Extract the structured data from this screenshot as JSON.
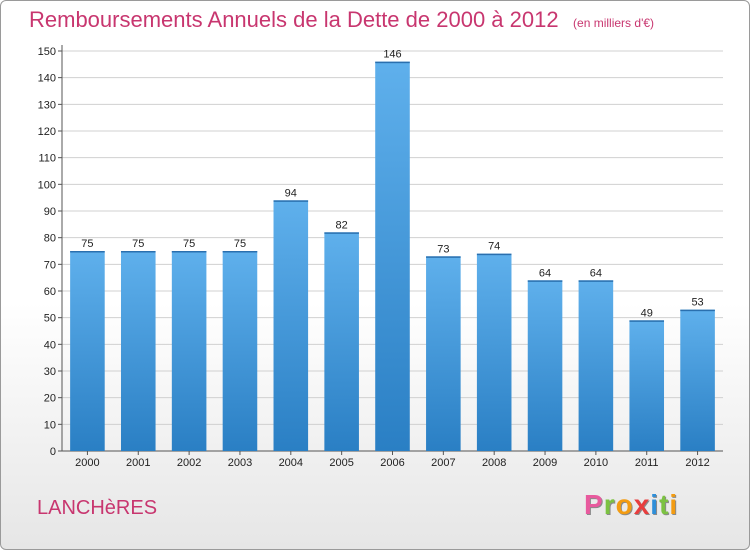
{
  "chart_data": {
    "type": "bar",
    "title": "Remboursements Annuels de la Dette de 2000 à 2012",
    "subtitle": "(en milliers d'€)",
    "categories": [
      "2000",
      "2001",
      "2002",
      "2003",
      "2004",
      "2005",
      "2006",
      "2007",
      "2008",
      "2009",
      "2010",
      "2011",
      "2012"
    ],
    "values": [
      75,
      75,
      75,
      75,
      94,
      82,
      146,
      73,
      74,
      64,
      64,
      49,
      53
    ],
    "xlabel": "",
    "ylabel": "",
    "ylim": [
      0,
      150
    ],
    "yticks": [
      0,
      10,
      20,
      30,
      40,
      50,
      60,
      70,
      80,
      90,
      100,
      110,
      120,
      130,
      140,
      150
    ],
    "grid": true,
    "bar_color": "#4a9fe0",
    "accent_color": "#c8366f"
  },
  "footer": {
    "place": "LANCHèRES",
    "logo_letters": [
      {
        "ch": "P",
        "color": "#e85a9e"
      },
      {
        "ch": "r",
        "color": "#7cc242"
      },
      {
        "ch": "o",
        "color": "#f39c12"
      },
      {
        "ch": "x",
        "color": "#e83e3e"
      },
      {
        "ch": "i",
        "color": "#2f8fd8"
      },
      {
        "ch": "t",
        "color": "#7cc242"
      },
      {
        "ch": "i",
        "color": "#f39c12"
      }
    ]
  }
}
